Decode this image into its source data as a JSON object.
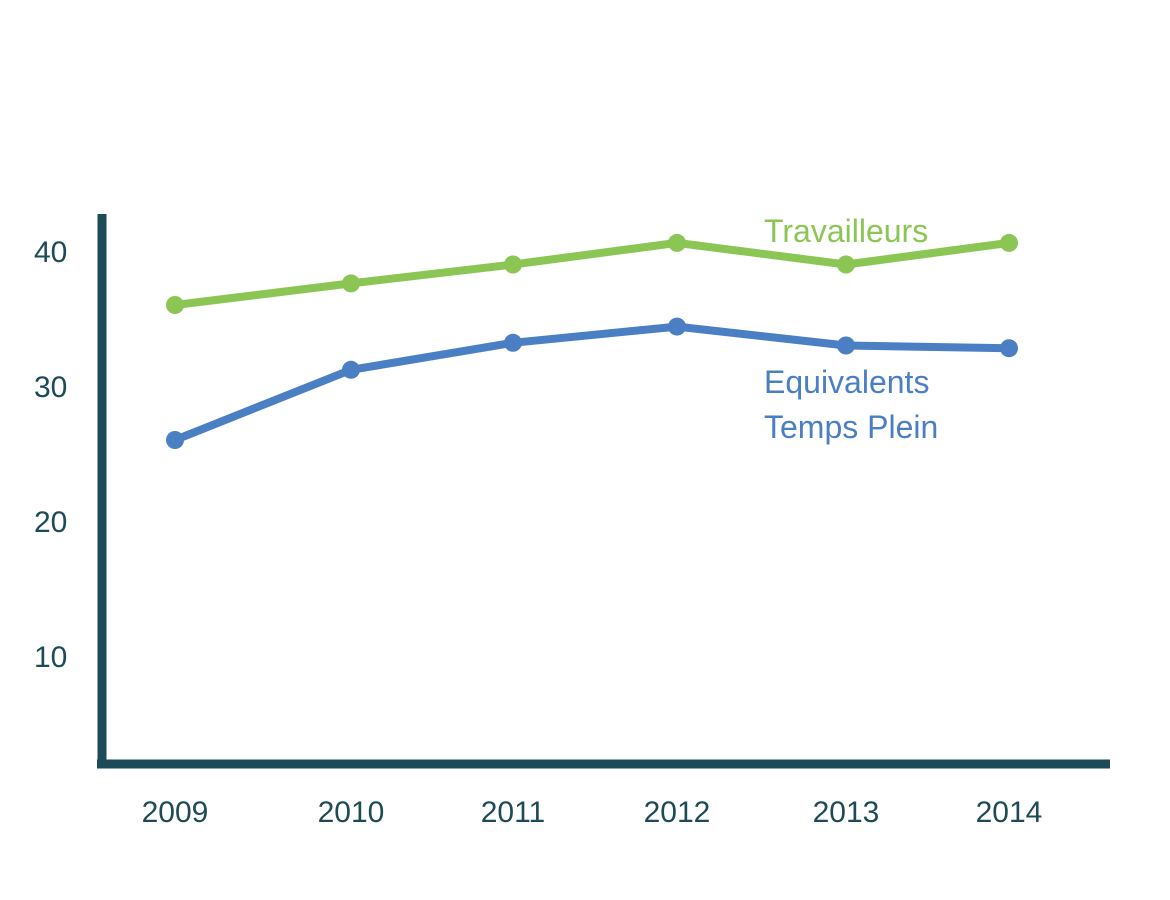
{
  "chart_data": {
    "type": "line",
    "title": "",
    "xlabel": "",
    "ylabel": "",
    "categories": [
      "2009",
      "2010",
      "2011",
      "2012",
      "2013",
      "2014"
    ],
    "yticks": [
      10,
      20,
      30,
      40
    ],
    "ylim": [
      2,
      43
    ],
    "grid": false,
    "series": [
      {
        "key": "travailleurs",
        "label_lines": [
          "Travailleurs"
        ],
        "color": "#8bc553",
        "values": [
          36.0,
          37.6,
          39.0,
          40.6,
          39.0,
          40.6
        ]
      },
      {
        "key": "etp",
        "label_lines": [
          "Equivalents",
          "Temps Plein"
        ],
        "color": "#4a7fc4",
        "values": [
          26.0,
          31.2,
          33.2,
          34.4,
          33.0,
          32.8
        ]
      }
    ],
    "axis_color": "#1d4a57"
  }
}
